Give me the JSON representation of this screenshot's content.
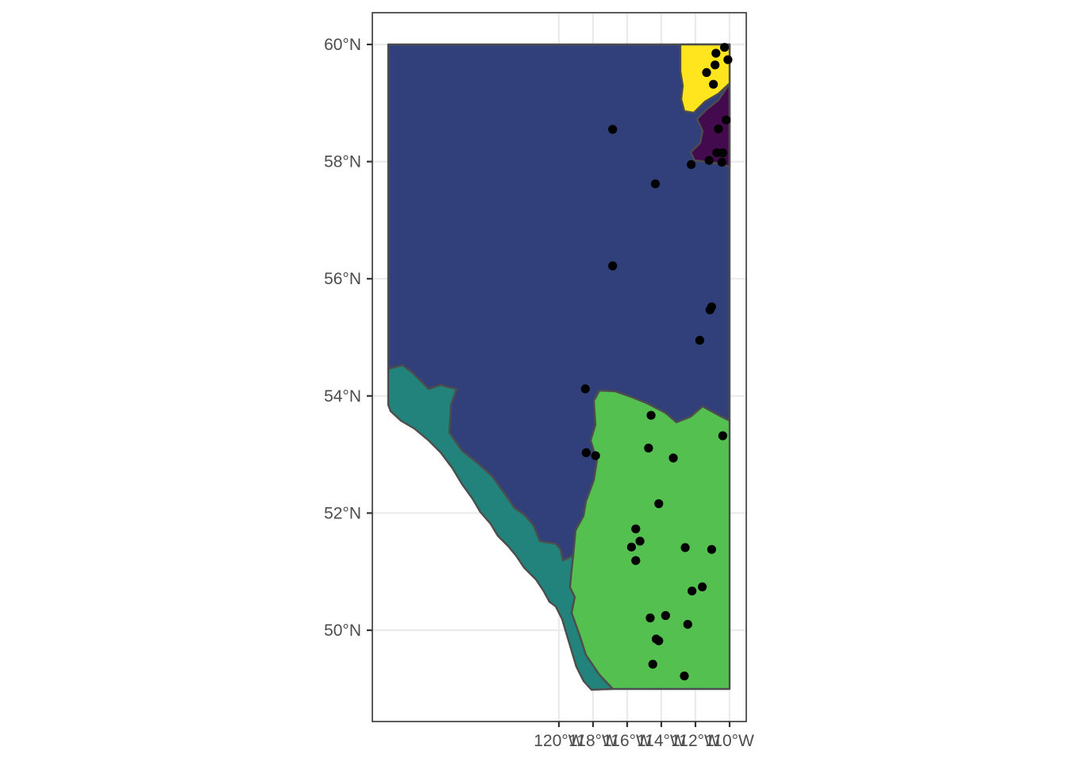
{
  "map": {
    "axes": {
      "x_ticks": [
        "120°W",
        "118°W",
        "116°W",
        "114°W",
        "112°W",
        "110°W"
      ],
      "y_ticks": [
        "60°N",
        "58°N",
        "56°N",
        "54°N",
        "52°N",
        "50°N"
      ],
      "x_tick_values": [
        -120,
        -118,
        -116,
        -114,
        -112,
        -110
      ],
      "y_tick_values": [
        60,
        58,
        56,
        54,
        52,
        50
      ],
      "lon_range": [
        -120.45,
        -109.5
      ],
      "lat_range": [
        48.55,
        60.55
      ],
      "grid": true,
      "theme": "black-and-white panel with light grey grid"
    },
    "regions": [
      {
        "id": "boreal",
        "fill": "#31407a"
      },
      {
        "id": "rocky-mountain",
        "fill": "#21837b"
      },
      {
        "id": "grassland",
        "fill": "#53c050"
      },
      {
        "id": "canadian-shield",
        "fill": "#ffe51d"
      },
      {
        "id": "northern-strip",
        "fill": "#430b4e"
      }
    ],
    "points_color": "#000000",
    "points": [
      [
        -116.85,
        58.55
      ],
      [
        -114.35,
        57.62
      ],
      [
        -112.25,
        57.95
      ],
      [
        -111.2,
        58.02
      ],
      [
        -110.45,
        57.99
      ],
      [
        -110.4,
        58.15
      ],
      [
        -110.75,
        58.15
      ],
      [
        -110.65,
        58.56
      ],
      [
        -110.2,
        58.71
      ],
      [
        -111.35,
        59.52
      ],
      [
        -110.95,
        59.32
      ],
      [
        -110.85,
        59.65
      ],
      [
        -110.8,
        59.85
      ],
      [
        -110.3,
        59.95
      ],
      [
        -110.1,
        59.74
      ],
      [
        -116.85,
        56.22
      ],
      [
        -111.15,
        55.47
      ],
      [
        -111.05,
        55.52
      ],
      [
        -111.75,
        54.95
      ],
      [
        -118.45,
        54.12
      ],
      [
        -114.6,
        53.67
      ],
      [
        -114.75,
        53.11
      ],
      [
        -113.3,
        52.94
      ],
      [
        -110.4,
        53.32
      ],
      [
        -118.4,
        53.03
      ],
      [
        -117.85,
        52.98
      ],
      [
        -114.15,
        52.16
      ],
      [
        -115.5,
        51.73
      ],
      [
        -115.25,
        51.52
      ],
      [
        -115.75,
        51.42
      ],
      [
        -115.5,
        51.19
      ],
      [
        -112.6,
        51.41
      ],
      [
        -111.05,
        51.38
      ],
      [
        -112.2,
        50.67
      ],
      [
        -111.6,
        50.74
      ],
      [
        -113.75,
        50.25
      ],
      [
        -112.45,
        50.1
      ],
      [
        -114.65,
        50.21
      ],
      [
        -114.3,
        49.85
      ],
      [
        -114.15,
        49.82
      ],
      [
        -114.5,
        49.42
      ],
      [
        -112.65,
        49.22
      ]
    ]
  }
}
